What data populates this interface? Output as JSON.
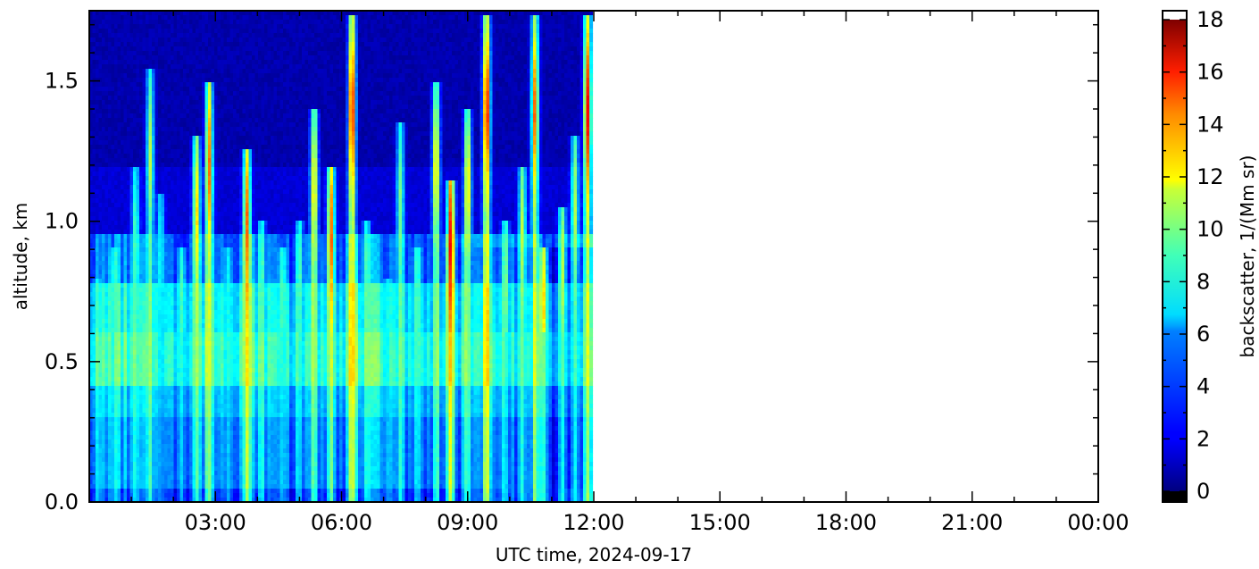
{
  "chart_data": {
    "type": "heatmap",
    "title": "",
    "xlabel": "UTC time,  2024-09-17",
    "ylabel": "altitude, km",
    "colorbar_label": "backscatter, 1/(Mm sr)",
    "xlim_hours": [
      0,
      24
    ],
    "ylim_km": [
      0.0,
      1.75
    ],
    "x_ticks": [
      {
        "value": 3,
        "label": "03:00"
      },
      {
        "value": 6,
        "label": "06:00"
      },
      {
        "value": 9,
        "label": "09:00"
      },
      {
        "value": 12,
        "label": "12:00"
      },
      {
        "value": 15,
        "label": "15:00"
      },
      {
        "value": 18,
        "label": "18:00"
      },
      {
        "value": 21,
        "label": "21:00"
      },
      {
        "value": 24,
        "label": "00:00"
      }
    ],
    "y_ticks": [
      {
        "value": 0.0,
        "label": "0.0"
      },
      {
        "value": 0.5,
        "label": "0.5"
      },
      {
        "value": 1.0,
        "label": "1.0"
      },
      {
        "value": 1.5,
        "label": "1.5"
      }
    ],
    "colorbar": {
      "range": [
        0,
        18
      ],
      "colormap": "jet",
      "ticks": [
        0,
        2,
        4,
        6,
        8,
        10,
        12,
        14,
        16,
        18
      ],
      "under_color": "#000000",
      "over_color": "#ffffff"
    },
    "data_extent_hours": [
      0,
      12
    ],
    "layers": [
      {
        "top_km": 0.05,
        "value": 3.0
      },
      {
        "top_km": 0.3,
        "value": 4.5
      },
      {
        "top_km": 0.42,
        "value": 5.5
      },
      {
        "top_km": 0.6,
        "value": 7.5
      },
      {
        "top_km": 0.78,
        "value": 6.5
      },
      {
        "top_km": 0.95,
        "value": 4.0
      },
      {
        "top_km": 1.2,
        "value": 1.5
      },
      {
        "top_km": 1.75,
        "value": 0.8
      }
    ],
    "plumes": [
      {
        "t": 0.2,
        "top_km": 0.8,
        "peak": 7
      },
      {
        "t": 0.6,
        "top_km": 0.9,
        "peak": 8
      },
      {
        "t": 1.1,
        "top_km": 1.2,
        "peak": 8
      },
      {
        "t": 1.45,
        "top_km": 1.55,
        "peak": 10
      },
      {
        "t": 1.7,
        "top_km": 1.1,
        "peak": 7
      },
      {
        "t": 2.2,
        "top_km": 0.9,
        "peak": 8
      },
      {
        "t": 2.55,
        "top_km": 1.3,
        "peak": 12
      },
      {
        "t": 2.85,
        "top_km": 1.5,
        "peak": 14
      },
      {
        "t": 3.3,
        "top_km": 0.9,
        "peak": 7
      },
      {
        "t": 3.75,
        "top_km": 1.25,
        "peak": 14
      },
      {
        "t": 4.1,
        "top_km": 1.0,
        "peak": 8
      },
      {
        "t": 4.6,
        "top_km": 0.9,
        "peak": 8
      },
      {
        "t": 5.0,
        "top_km": 1.0,
        "peak": 8
      },
      {
        "t": 5.35,
        "top_km": 1.4,
        "peak": 12
      },
      {
        "t": 5.75,
        "top_km": 1.2,
        "peak": 14
      },
      {
        "t": 6.25,
        "top_km": 1.74,
        "peak": 16
      },
      {
        "t": 6.6,
        "top_km": 1.0,
        "peak": 8
      },
      {
        "t": 7.1,
        "top_km": 0.8,
        "peak": 7
      },
      {
        "t": 7.4,
        "top_km": 1.35,
        "peak": 9
      },
      {
        "t": 7.8,
        "top_km": 0.9,
        "peak": 8
      },
      {
        "t": 8.25,
        "top_km": 1.5,
        "peak": 12
      },
      {
        "t": 8.6,
        "top_km": 1.15,
        "peak": 16
      },
      {
        "t": 9.0,
        "top_km": 1.4,
        "peak": 12
      },
      {
        "t": 9.45,
        "top_km": 1.74,
        "peak": 16
      },
      {
        "t": 9.9,
        "top_km": 1.0,
        "peak": 9
      },
      {
        "t": 10.3,
        "top_km": 1.2,
        "peak": 10
      },
      {
        "t": 10.6,
        "top_km": 1.74,
        "peak": 14
      },
      {
        "t": 10.8,
        "top_km": 0.9,
        "peak": 12
      },
      {
        "t": 11.25,
        "top_km": 1.05,
        "peak": 10
      },
      {
        "t": 11.55,
        "top_km": 1.3,
        "peak": 10
      },
      {
        "t": 11.85,
        "top_km": 1.74,
        "peak": 16
      }
    ]
  }
}
